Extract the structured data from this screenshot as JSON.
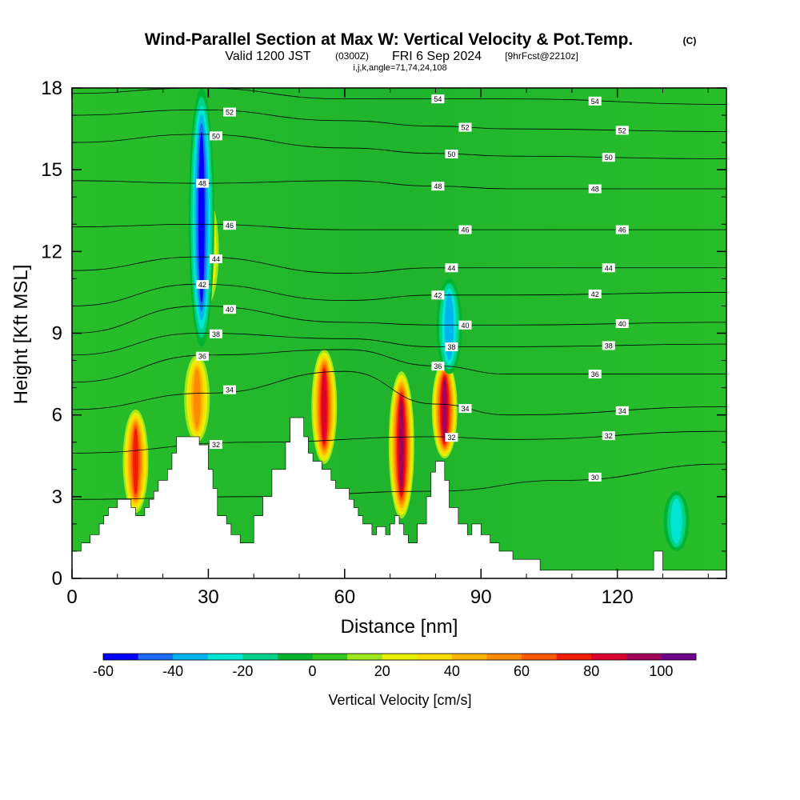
{
  "chart_data": {
    "type": "heatmap",
    "title": "Wind-Parallel Section at Max W: Vertical Velocity & Pot.Temp.",
    "title_unit": "(C)",
    "subtitle_prefix": "Valid 1200 JST",
    "subtitle_utc": "(0300Z)",
    "subtitle_date": "FRI 6 Sep 2024",
    "subtitle_fcst": "[9hrFcst@2210z]",
    "subtitle2": "i,j,k,angle=71,74,24,108",
    "xlabel": "Distance [nm]",
    "ylabel": "Height [Kft MSL]",
    "xlim": [
      0,
      144
    ],
    "ylim": [
      0,
      18
    ],
    "xticks": [
      "0",
      "30",
      "60",
      "90",
      "120"
    ],
    "yticks": [
      "0",
      "3",
      "6",
      "9",
      "12",
      "15",
      "18"
    ],
    "colorbar": {
      "label": "Vertical Velocity [cm/s]",
      "min": -60,
      "max": 110,
      "step": 10,
      "tick_labels": [
        "-60",
        "-40",
        "-20",
        "0",
        "20",
        "40",
        "60",
        "80",
        "100"
      ],
      "colors": [
        "#0000ff",
        "#1a6cf0",
        "#00b4f0",
        "#00e6d2",
        "#00d28c",
        "#00b432",
        "#32c81e",
        "#9ee61e",
        "#e6f000",
        "#fadc00",
        "#ffb400",
        "#ff8c00",
        "#ff5a00",
        "#f01e00",
        "#dc0032",
        "#a0005a",
        "#6e008c"
      ]
    },
    "background_value_cm_s": 0,
    "terrain_kft": [
      [
        0,
        1.0
      ],
      [
        2,
        1.0
      ],
      [
        2,
        1.3
      ],
      [
        4,
        1.3
      ],
      [
        4,
        1.6
      ],
      [
        6,
        1.6
      ],
      [
        6,
        2.0
      ],
      [
        7,
        2.0
      ],
      [
        7,
        2.3
      ],
      [
        8,
        2.3
      ],
      [
        8,
        2.6
      ],
      [
        10,
        2.6
      ],
      [
        10,
        2.9
      ],
      [
        13,
        2.9
      ],
      [
        13,
        2.6
      ],
      [
        14,
        2.6
      ],
      [
        14,
        2.3
      ],
      [
        16,
        2.3
      ],
      [
        16,
        2.6
      ],
      [
        17,
        2.6
      ],
      [
        17,
        2.9
      ],
      [
        18,
        2.9
      ],
      [
        18,
        3.2
      ],
      [
        19,
        3.2
      ],
      [
        19,
        3.6
      ],
      [
        21,
        3.6
      ],
      [
        21,
        4.0
      ],
      [
        22,
        4.0
      ],
      [
        22,
        4.6
      ],
      [
        23,
        4.6
      ],
      [
        23,
        5.2
      ],
      [
        28,
        5.2
      ],
      [
        28,
        4.9
      ],
      [
        30,
        4.9
      ],
      [
        30,
        4.0
      ],
      [
        31,
        4.0
      ],
      [
        31,
        3.3
      ],
      [
        32,
        3.3
      ],
      [
        32,
        2.3
      ],
      [
        34,
        2.3
      ],
      [
        34,
        2.0
      ],
      [
        35,
        2.0
      ],
      [
        35,
        1.6
      ],
      [
        37,
        1.6
      ],
      [
        37,
        1.3
      ],
      [
        40,
        1.3
      ],
      [
        40,
        2.3
      ],
      [
        42,
        2.3
      ],
      [
        42,
        3.0
      ],
      [
        44,
        3.0
      ],
      [
        44,
        4.0
      ],
      [
        47,
        4.0
      ],
      [
        47,
        5.0
      ],
      [
        48,
        5.0
      ],
      [
        48,
        5.9
      ],
      [
        51,
        5.9
      ],
      [
        51,
        5.2
      ],
      [
        52,
        5.2
      ],
      [
        52,
        4.6
      ],
      [
        53,
        4.6
      ],
      [
        53,
        4.3
      ],
      [
        55,
        4.3
      ],
      [
        55,
        4.0
      ],
      [
        57,
        4.0
      ],
      [
        57,
        3.6
      ],
      [
        58,
        3.6
      ],
      [
        58,
        3.3
      ],
      [
        61,
        3.3
      ],
      [
        61,
        2.9
      ],
      [
        62,
        2.9
      ],
      [
        62,
        2.6
      ],
      [
        63,
        2.6
      ],
      [
        63,
        2.3
      ],
      [
        64,
        2.3
      ],
      [
        64,
        2.0
      ],
      [
        66,
        2.0
      ],
      [
        66,
        1.6
      ],
      [
        67,
        1.6
      ],
      [
        67,
        1.9
      ],
      [
        69,
        1.9
      ],
      [
        69,
        1.6
      ],
      [
        70,
        1.6
      ],
      [
        70,
        2.0
      ],
      [
        71,
        2.0
      ],
      [
        71,
        2.3
      ],
      [
        72,
        2.3
      ],
      [
        72,
        2.0
      ],
      [
        73,
        2.0
      ],
      [
        73,
        1.6
      ],
      [
        74,
        1.6
      ],
      [
        74,
        1.3
      ],
      [
        76,
        1.3
      ],
      [
        76,
        2.0
      ],
      [
        78,
        2.0
      ],
      [
        78,
        3.0
      ],
      [
        79,
        3.0
      ],
      [
        79,
        3.9
      ],
      [
        80,
        3.9
      ],
      [
        80,
        4.3
      ],
      [
        82,
        4.3
      ],
      [
        82,
        3.6
      ],
      [
        83,
        3.6
      ],
      [
        83,
        2.6
      ],
      [
        85,
        2.6
      ],
      [
        85,
        2.0
      ],
      [
        87,
        2.0
      ],
      [
        87,
        1.6
      ],
      [
        88,
        1.6
      ],
      [
        88,
        2.0
      ],
      [
        90,
        2.0
      ],
      [
        90,
        1.6
      ],
      [
        92,
        1.6
      ],
      [
        92,
        1.3
      ],
      [
        94,
        1.3
      ],
      [
        94,
        1.0
      ],
      [
        97,
        1.0
      ],
      [
        97,
        0.7
      ],
      [
        103,
        0.7
      ],
      [
        103,
        0.3
      ],
      [
        128,
        0.3
      ],
      [
        128,
        1.0
      ],
      [
        130,
        1.0
      ],
      [
        130,
        0.3
      ],
      [
        144,
        0.3
      ]
    ],
    "updraft_cores": [
      {
        "x": 14,
        "base": 2.4,
        "top": 6.2,
        "peak": 70
      },
      {
        "x": 27.5,
        "base": 5.0,
        "top": 8.2,
        "peak": 55
      },
      {
        "x": 29.5,
        "base": 10.0,
        "top": 14.0,
        "peak": 55
      },
      {
        "x": 55.5,
        "base": 4.2,
        "top": 8.4,
        "peak": 80
      },
      {
        "x": 72.5,
        "base": 2.2,
        "top": 7.6,
        "peak": 95
      },
      {
        "x": 82,
        "base": 4.4,
        "top": 8.0,
        "peak": 90
      }
    ],
    "downdraft_cores": [
      {
        "x": 28.5,
        "base": 8.5,
        "top": 18,
        "peak": -60
      },
      {
        "x": 83,
        "base": 7.5,
        "top": 11,
        "peak": -40
      },
      {
        "x": 133,
        "base": 1.0,
        "top": 3.2,
        "peak": -30
      }
    ],
    "potential_temperature_contours": [
      {
        "theta": 30,
        "label": "30",
        "heights": [
          [
            0,
            2.9
          ],
          [
            40,
            3.0
          ],
          [
            80,
            3.2
          ],
          [
            108,
            3.6
          ],
          [
            144,
            4.2
          ]
        ]
      },
      {
        "theta": 32,
        "label": "32",
        "heights": [
          [
            0,
            4.6
          ],
          [
            40,
            5.0
          ],
          [
            80,
            5.2
          ],
          [
            96,
            5.1
          ],
          [
            144,
            5.4
          ]
        ]
      },
      {
        "theta": 34,
        "label": "34",
        "heights": [
          [
            0,
            6.2
          ],
          [
            30,
            6.8
          ],
          [
            60,
            7.6
          ],
          [
            80,
            6.4
          ],
          [
            96,
            6.0
          ],
          [
            144,
            6.3
          ]
        ]
      },
      {
        "theta": 36,
        "label": "36",
        "heights": [
          [
            0,
            7.2
          ],
          [
            30,
            8.2
          ],
          [
            60,
            8.4
          ],
          [
            80,
            7.8
          ],
          [
            96,
            7.5
          ],
          [
            144,
            7.5
          ]
        ]
      },
      {
        "theta": 38,
        "label": "38",
        "heights": [
          [
            0,
            8.2
          ],
          [
            28,
            9.0
          ],
          [
            60,
            8.8
          ],
          [
            80,
            8.5
          ],
          [
            96,
            8.5
          ],
          [
            144,
            8.6
          ]
        ]
      },
      {
        "theta": 40,
        "label": "40",
        "heights": [
          [
            0,
            9.0
          ],
          [
            28,
            10.0
          ],
          [
            60,
            9.4
          ],
          [
            80,
            9.3
          ],
          [
            96,
            9.3
          ],
          [
            144,
            9.4
          ]
        ]
      },
      {
        "theta": 42,
        "label": "42",
        "heights": [
          [
            0,
            10.0
          ],
          [
            28,
            10.8
          ],
          [
            60,
            10.2
          ],
          [
            80,
            10.4
          ],
          [
            96,
            10.4
          ],
          [
            144,
            10.5
          ]
        ]
      },
      {
        "theta": 44,
        "label": "44",
        "heights": [
          [
            0,
            11.3
          ],
          [
            28,
            11.8
          ],
          [
            60,
            11.2
          ],
          [
            80,
            11.4
          ],
          [
            96,
            11.4
          ],
          [
            144,
            11.4
          ]
        ]
      },
      {
        "theta": 46,
        "label": "46",
        "heights": [
          [
            0,
            12.9
          ],
          [
            28,
            13.0
          ],
          [
            60,
            12.8
          ],
          [
            80,
            12.8
          ],
          [
            96,
            12.8
          ],
          [
            144,
            12.8
          ]
        ]
      },
      {
        "theta": 48,
        "label": "48",
        "heights": [
          [
            0,
            14.6
          ],
          [
            28,
            14.5
          ],
          [
            60,
            14.6
          ],
          [
            80,
            14.4
          ],
          [
            96,
            14.3
          ],
          [
            144,
            14.3
          ]
        ]
      },
      {
        "theta": 50,
        "label": "50",
        "heights": [
          [
            0,
            16.0
          ],
          [
            28,
            16.3
          ],
          [
            60,
            15.8
          ],
          [
            80,
            15.6
          ],
          [
            96,
            15.5
          ],
          [
            144,
            15.4
          ]
        ]
      },
      {
        "theta": 52,
        "label": "52",
        "heights": [
          [
            0,
            17.0
          ],
          [
            28,
            17.2
          ],
          [
            60,
            16.8
          ],
          [
            80,
            16.6
          ],
          [
            96,
            16.5
          ],
          [
            144,
            16.4
          ]
        ]
      },
      {
        "theta": 54,
        "label": "54",
        "heights": [
          [
            0,
            17.8
          ],
          [
            28,
            18.0
          ],
          [
            60,
            17.6
          ],
          [
            80,
            17.6
          ],
          [
            96,
            17.6
          ],
          [
            144,
            17.4
          ]
        ]
      }
    ]
  }
}
